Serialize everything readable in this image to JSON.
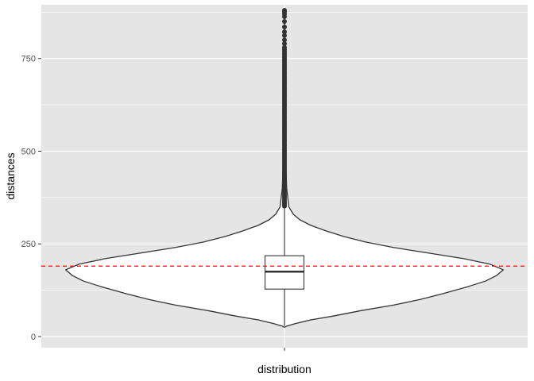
{
  "chart_data": {
    "type": "violin",
    "xlabel": "distribution",
    "ylabel": "distances",
    "categories": [
      ""
    ],
    "ylim": [
      -30,
      895
    ],
    "yticks": [
      0,
      250,
      500,
      750
    ],
    "grid": true,
    "panel_color": "#e5e5e5",
    "grid_color": "#ffffff",
    "reference_line": {
      "y": 190,
      "color": "#ff0000",
      "style": "dashed"
    },
    "violin": {
      "fill": "#ffffff",
      "stroke": "#333333",
      "max_halfwidth_fraction": 0.45,
      "profile": [
        {
          "y": 25,
          "w": 0.0
        },
        {
          "y": 28,
          "w": 0.01
        },
        {
          "y": 35,
          "w": 0.05
        },
        {
          "y": 45,
          "w": 0.12
        },
        {
          "y": 55,
          "w": 0.22
        },
        {
          "y": 70,
          "w": 0.35
        },
        {
          "y": 85,
          "w": 0.5
        },
        {
          "y": 100,
          "w": 0.62
        },
        {
          "y": 115,
          "w": 0.72
        },
        {
          "y": 125,
          "w": 0.78
        },
        {
          "y": 135,
          "w": 0.84
        },
        {
          "y": 150,
          "w": 0.92
        },
        {
          "y": 165,
          "w": 0.97
        },
        {
          "y": 180,
          "w": 1.0
        },
        {
          "y": 195,
          "w": 0.94
        },
        {
          "y": 210,
          "w": 0.82
        },
        {
          "y": 225,
          "w": 0.66
        },
        {
          "y": 240,
          "w": 0.5
        },
        {
          "y": 255,
          "w": 0.37
        },
        {
          "y": 270,
          "w": 0.27
        },
        {
          "y": 285,
          "w": 0.19
        },
        {
          "y": 300,
          "w": 0.12
        },
        {
          "y": 315,
          "w": 0.07
        },
        {
          "y": 330,
          "w": 0.04
        },
        {
          "y": 350,
          "w": 0.02
        },
        {
          "y": 400,
          "w": 0.01
        },
        {
          "y": 500,
          "w": 0.004
        },
        {
          "y": 650,
          "w": 0.002
        },
        {
          "y": 880,
          "w": 0.0
        }
      ]
    },
    "boxplot": {
      "q1": 128,
      "median": 175,
      "q3": 218,
      "whisker_low": 28,
      "whisker_high": 350,
      "box_halfwidth_fraction": 0.04,
      "stroke": "#333333"
    },
    "outliers": [
      352,
      356,
      360,
      365,
      370,
      375,
      380,
      385,
      390,
      395,
      400,
      405,
      410,
      415,
      420,
      425,
      430,
      435,
      440,
      445,
      450,
      455,
      460,
      465,
      470,
      475,
      480,
      485,
      490,
      495,
      500,
      505,
      510,
      515,
      520,
      525,
      530,
      535,
      540,
      545,
      550,
      555,
      560,
      565,
      570,
      575,
      580,
      585,
      590,
      595,
      600,
      605,
      610,
      615,
      620,
      625,
      630,
      635,
      640,
      645,
      650,
      655,
      660,
      665,
      670,
      675,
      680,
      685,
      690,
      695,
      700,
      705,
      710,
      715,
      720,
      725,
      730,
      735,
      740,
      745,
      750,
      755,
      760,
      765,
      770,
      775,
      780,
      790,
      800,
      812,
      822,
      835,
      850,
      863,
      870,
      876,
      880
    ]
  }
}
